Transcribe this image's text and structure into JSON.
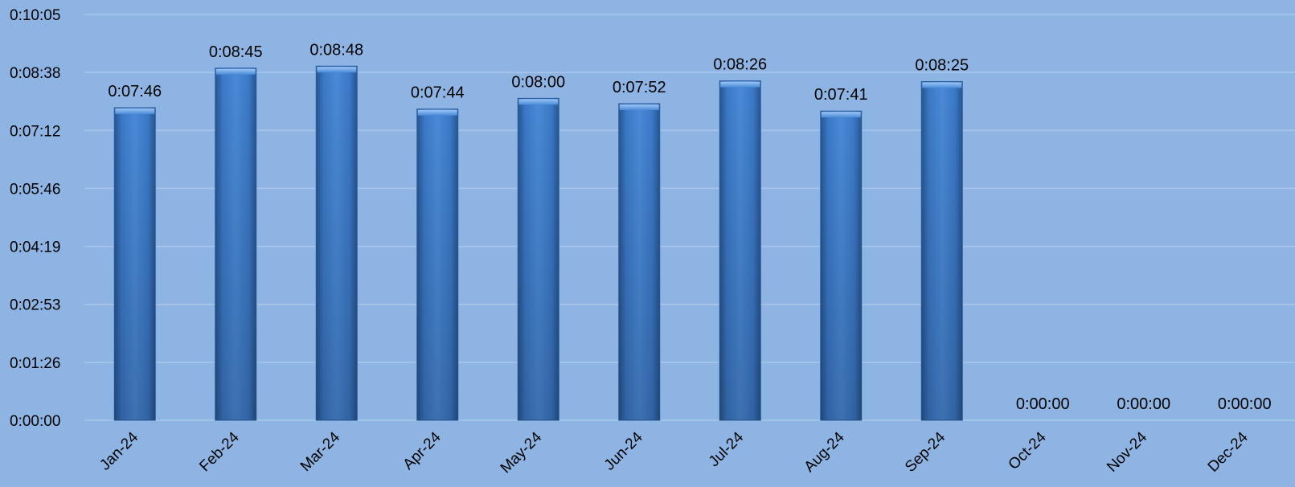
{
  "chart_data": {
    "type": "bar",
    "title": "",
    "xlabel": "",
    "ylabel": "",
    "categories": [
      "Jan-24",
      "Feb-24",
      "Mar-24",
      "Apr-24",
      "May-24",
      "Jun-24",
      "Jul-24",
      "Aug-24",
      "Sep-24",
      "Oct-24",
      "Nov-24",
      "Dec-24"
    ],
    "values_seconds": [
      466,
      525,
      528,
      464,
      480,
      472,
      506,
      461,
      505,
      0,
      0,
      0
    ],
    "data_labels": [
      "0:07:46",
      "0:08:45",
      "0:08:48",
      "0:07:44",
      "0:08:00",
      "0:07:52",
      "0:08:26",
      "0:07:41",
      "0:08:25",
      "0:00:00",
      "0:00:00",
      "0:00:00"
    ],
    "y_ticks": [
      "0:00:00",
      "0:01:26",
      "0:02:53",
      "0:04:19",
      "0:05:46",
      "0:07:12",
      "0:08:38",
      "0:10:05"
    ],
    "ylim_seconds": [
      0,
      605
    ],
    "grid": true,
    "legend": "none",
    "colors": {
      "background": "#8eb4e3",
      "bar": "#3f7fcf",
      "bar_dark": "#25558f",
      "bar_light": "#6aa3e8",
      "gridline": "#a9c6ea"
    }
  }
}
